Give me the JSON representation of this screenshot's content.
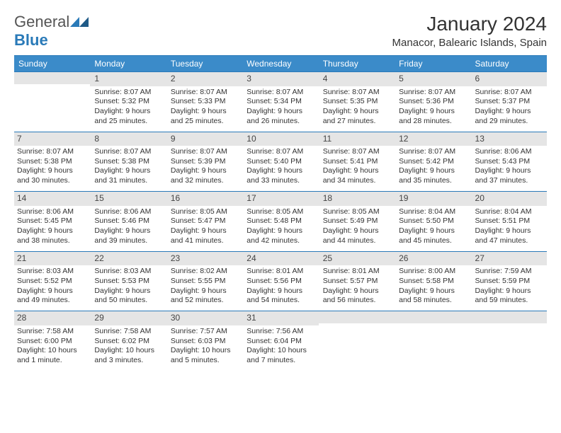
{
  "logo": {
    "text1": "General",
    "text2": "Blue"
  },
  "title": "January 2024",
  "location": "Manacor, Balearic Islands, Spain",
  "colors": {
    "header_bg": "#3b8bc9",
    "header_text": "#ffffff",
    "daynum_bg": "#e5e5e5",
    "border": "#2a7ab8",
    "text": "#333333"
  },
  "weekdays": [
    "Sunday",
    "Monday",
    "Tuesday",
    "Wednesday",
    "Thursday",
    "Friday",
    "Saturday"
  ],
  "weeks": [
    [
      {
        "n": "",
        "lines": []
      },
      {
        "n": "1",
        "lines": [
          "Sunrise: 8:07 AM",
          "Sunset: 5:32 PM",
          "Daylight: 9 hours",
          "and 25 minutes."
        ]
      },
      {
        "n": "2",
        "lines": [
          "Sunrise: 8:07 AM",
          "Sunset: 5:33 PM",
          "Daylight: 9 hours",
          "and 25 minutes."
        ]
      },
      {
        "n": "3",
        "lines": [
          "Sunrise: 8:07 AM",
          "Sunset: 5:34 PM",
          "Daylight: 9 hours",
          "and 26 minutes."
        ]
      },
      {
        "n": "4",
        "lines": [
          "Sunrise: 8:07 AM",
          "Sunset: 5:35 PM",
          "Daylight: 9 hours",
          "and 27 minutes."
        ]
      },
      {
        "n": "5",
        "lines": [
          "Sunrise: 8:07 AM",
          "Sunset: 5:36 PM",
          "Daylight: 9 hours",
          "and 28 minutes."
        ]
      },
      {
        "n": "6",
        "lines": [
          "Sunrise: 8:07 AM",
          "Sunset: 5:37 PM",
          "Daylight: 9 hours",
          "and 29 minutes."
        ]
      }
    ],
    [
      {
        "n": "7",
        "lines": [
          "Sunrise: 8:07 AM",
          "Sunset: 5:38 PM",
          "Daylight: 9 hours",
          "and 30 minutes."
        ]
      },
      {
        "n": "8",
        "lines": [
          "Sunrise: 8:07 AM",
          "Sunset: 5:38 PM",
          "Daylight: 9 hours",
          "and 31 minutes."
        ]
      },
      {
        "n": "9",
        "lines": [
          "Sunrise: 8:07 AM",
          "Sunset: 5:39 PM",
          "Daylight: 9 hours",
          "and 32 minutes."
        ]
      },
      {
        "n": "10",
        "lines": [
          "Sunrise: 8:07 AM",
          "Sunset: 5:40 PM",
          "Daylight: 9 hours",
          "and 33 minutes."
        ]
      },
      {
        "n": "11",
        "lines": [
          "Sunrise: 8:07 AM",
          "Sunset: 5:41 PM",
          "Daylight: 9 hours",
          "and 34 minutes."
        ]
      },
      {
        "n": "12",
        "lines": [
          "Sunrise: 8:07 AM",
          "Sunset: 5:42 PM",
          "Daylight: 9 hours",
          "and 35 minutes."
        ]
      },
      {
        "n": "13",
        "lines": [
          "Sunrise: 8:06 AM",
          "Sunset: 5:43 PM",
          "Daylight: 9 hours",
          "and 37 minutes."
        ]
      }
    ],
    [
      {
        "n": "14",
        "lines": [
          "Sunrise: 8:06 AM",
          "Sunset: 5:45 PM",
          "Daylight: 9 hours",
          "and 38 minutes."
        ]
      },
      {
        "n": "15",
        "lines": [
          "Sunrise: 8:06 AM",
          "Sunset: 5:46 PM",
          "Daylight: 9 hours",
          "and 39 minutes."
        ]
      },
      {
        "n": "16",
        "lines": [
          "Sunrise: 8:05 AM",
          "Sunset: 5:47 PM",
          "Daylight: 9 hours",
          "and 41 minutes."
        ]
      },
      {
        "n": "17",
        "lines": [
          "Sunrise: 8:05 AM",
          "Sunset: 5:48 PM",
          "Daylight: 9 hours",
          "and 42 minutes."
        ]
      },
      {
        "n": "18",
        "lines": [
          "Sunrise: 8:05 AM",
          "Sunset: 5:49 PM",
          "Daylight: 9 hours",
          "and 44 minutes."
        ]
      },
      {
        "n": "19",
        "lines": [
          "Sunrise: 8:04 AM",
          "Sunset: 5:50 PM",
          "Daylight: 9 hours",
          "and 45 minutes."
        ]
      },
      {
        "n": "20",
        "lines": [
          "Sunrise: 8:04 AM",
          "Sunset: 5:51 PM",
          "Daylight: 9 hours",
          "and 47 minutes."
        ]
      }
    ],
    [
      {
        "n": "21",
        "lines": [
          "Sunrise: 8:03 AM",
          "Sunset: 5:52 PM",
          "Daylight: 9 hours",
          "and 49 minutes."
        ]
      },
      {
        "n": "22",
        "lines": [
          "Sunrise: 8:03 AM",
          "Sunset: 5:53 PM",
          "Daylight: 9 hours",
          "and 50 minutes."
        ]
      },
      {
        "n": "23",
        "lines": [
          "Sunrise: 8:02 AM",
          "Sunset: 5:55 PM",
          "Daylight: 9 hours",
          "and 52 minutes."
        ]
      },
      {
        "n": "24",
        "lines": [
          "Sunrise: 8:01 AM",
          "Sunset: 5:56 PM",
          "Daylight: 9 hours",
          "and 54 minutes."
        ]
      },
      {
        "n": "25",
        "lines": [
          "Sunrise: 8:01 AM",
          "Sunset: 5:57 PM",
          "Daylight: 9 hours",
          "and 56 minutes."
        ]
      },
      {
        "n": "26",
        "lines": [
          "Sunrise: 8:00 AM",
          "Sunset: 5:58 PM",
          "Daylight: 9 hours",
          "and 58 minutes."
        ]
      },
      {
        "n": "27",
        "lines": [
          "Sunrise: 7:59 AM",
          "Sunset: 5:59 PM",
          "Daylight: 9 hours",
          "and 59 minutes."
        ]
      }
    ],
    [
      {
        "n": "28",
        "lines": [
          "Sunrise: 7:58 AM",
          "Sunset: 6:00 PM",
          "Daylight: 10 hours",
          "and 1 minute."
        ]
      },
      {
        "n": "29",
        "lines": [
          "Sunrise: 7:58 AM",
          "Sunset: 6:02 PM",
          "Daylight: 10 hours",
          "and 3 minutes."
        ]
      },
      {
        "n": "30",
        "lines": [
          "Sunrise: 7:57 AM",
          "Sunset: 6:03 PM",
          "Daylight: 10 hours",
          "and 5 minutes."
        ]
      },
      {
        "n": "31",
        "lines": [
          "Sunrise: 7:56 AM",
          "Sunset: 6:04 PM",
          "Daylight: 10 hours",
          "and 7 minutes."
        ]
      },
      {
        "n": "",
        "lines": []
      },
      {
        "n": "",
        "lines": []
      },
      {
        "n": "",
        "lines": []
      }
    ]
  ]
}
